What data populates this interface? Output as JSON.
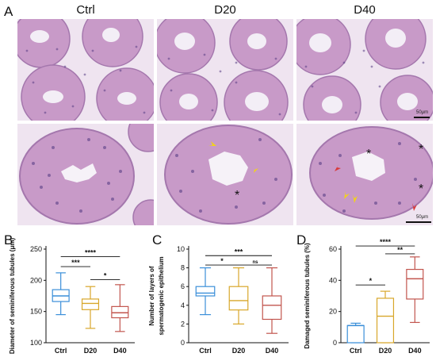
{
  "panels": {
    "a": "A",
    "b": "B",
    "c": "C",
    "d": "D"
  },
  "column_titles": [
    "Ctrl",
    "D20",
    "D40"
  ],
  "scalebars": {
    "top_right": "50μm",
    "bottom_right": "50μm"
  },
  "asterisk_mark": "*",
  "colors": {
    "tissue": "#c89ac8",
    "tissue_dark": "#9e6aa8",
    "lumen": "#f2eef4",
    "nuclei": "#5a3f86",
    "ctrl": "#3b8fd9",
    "d20": "#d8a72a",
    "d40": "#c2554e",
    "arrow_yellow": "#f1d21b",
    "arrow_red": "#d93a3a"
  },
  "chart_data": [
    {
      "id": "B",
      "type": "box",
      "ylabel": "Diameter of seminiferous tubules (μm)",
      "categories": [
        "Ctrl",
        "D20",
        "D40"
      ],
      "ylim": [
        100,
        250
      ],
      "yticks": [
        100,
        150,
        200,
        250
      ],
      "boxes": [
        {
          "category": "Ctrl",
          "min": 145,
          "q1": 166,
          "median": 175,
          "q3": 185,
          "max": 212
        },
        {
          "category": "D20",
          "min": 123,
          "q1": 153,
          "median": 163,
          "q3": 170,
          "max": 190
        },
        {
          "category": "D40",
          "min": 118,
          "q1": 140,
          "median": 148,
          "q3": 158,
          "max": 193
        }
      ],
      "significance": [
        {
          "from": "Ctrl",
          "to": "D40",
          "label": "****",
          "y": 238
        },
        {
          "from": "Ctrl",
          "to": "D20",
          "label": "***",
          "y": 222
        },
        {
          "from": "D20",
          "to": "D40",
          "label": "*",
          "y": 201
        }
      ]
    },
    {
      "id": "C",
      "type": "box",
      "ylabel": "Number of layers of spermatogenic epithelium",
      "categories": [
        "Ctrl",
        "D20",
        "D40"
      ],
      "ylim": [
        0,
        10
      ],
      "yticks": [
        0,
        2,
        4,
        6,
        8,
        10
      ],
      "boxes": [
        {
          "category": "Ctrl",
          "min": 3,
          "q1": 5,
          "median": 5.3,
          "q3": 6,
          "max": 8
        },
        {
          "category": "D20",
          "min": 2,
          "q1": 3.5,
          "median": 4.5,
          "q3": 6,
          "max": 8
        },
        {
          "category": "D40",
          "min": 1,
          "q1": 2.5,
          "median": 4,
          "q3": 5,
          "max": 8
        }
      ],
      "significance": [
        {
          "from": "Ctrl",
          "to": "D40",
          "label": "***",
          "y": 9.3
        },
        {
          "from": "Ctrl",
          "to": "D20",
          "label": "*",
          "y": 8.3
        },
        {
          "from": "D20",
          "to": "D40",
          "label": "ns",
          "y": 8.3
        }
      ]
    },
    {
      "id": "D",
      "type": "box",
      "ylabel": "Damaged seminiferous tubules (%)",
      "categories": [
        "Ctrl",
        "D20",
        "D40"
      ],
      "ylim": [
        0,
        60
      ],
      "yticks": [
        0,
        20,
        40,
        60
      ],
      "boxes": [
        {
          "category": "Ctrl",
          "min": 0,
          "q1": 0,
          "median": 11,
          "q3": 11,
          "max": 12.5
        },
        {
          "category": "D20",
          "min": 0,
          "q1": 0,
          "median": 17,
          "q3": 28.5,
          "max": 33
        },
        {
          "category": "D40",
          "min": 13,
          "q1": 28,
          "median": 41,
          "q3": 47,
          "max": 55
        }
      ],
      "significance": [
        {
          "from": "Ctrl",
          "to": "D40",
          "label": "****",
          "y": 62
        },
        {
          "from": "D20",
          "to": "D40",
          "label": "**",
          "y": 57
        },
        {
          "from": "Ctrl",
          "to": "D20",
          "label": "*",
          "y": 37
        }
      ]
    }
  ]
}
